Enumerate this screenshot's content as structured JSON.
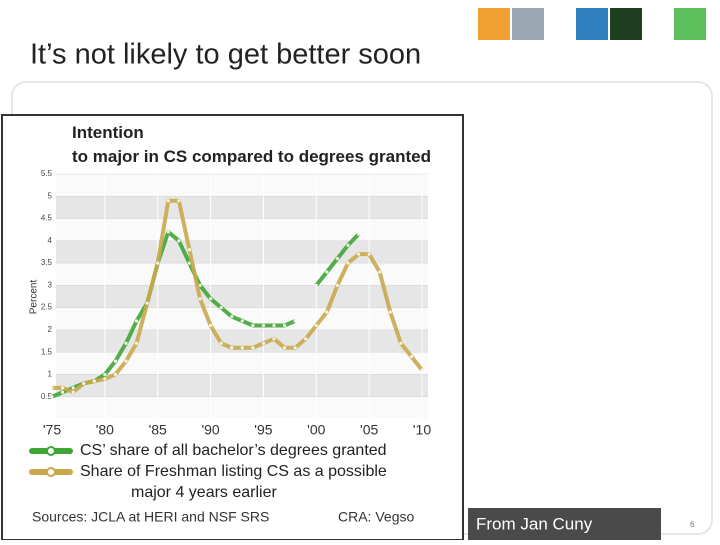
{
  "slide_title": "It’s not likely to get better soon",
  "credit": "From Jan Cuny",
  "page_number": "6",
  "chart_data": {
    "type": "line",
    "title": "Intention to major in CS compared to degrees granted",
    "y_label": "Percent",
    "x": [
      1975,
      1976,
      1977,
      1978,
      1979,
      1980,
      1981,
      1982,
      1983,
      1984,
      1985,
      1986,
      1987,
      1988,
      1989,
      1990,
      1991,
      1992,
      1993,
      1994,
      1995,
      1996,
      1997,
      1998,
      1999,
      2000,
      2001,
      2002,
      2003,
      2004,
      2005,
      2006,
      2007,
      2008,
      2009,
      2010
    ],
    "series": [
      {
        "name": "CS’ share of all bachelor’s degrees granted",
        "color": "#3fa535",
        "values": [
          0.5,
          0.6,
          0.7,
          0.8,
          0.85,
          1.0,
          1.3,
          1.7,
          2.2,
          2.6,
          3.5,
          4.2,
          4.0,
          3.5,
          3.0,
          2.7,
          2.5,
          2.3,
          2.2,
          2.1,
          2.1,
          2.1,
          2.1,
          2.2,
          null,
          3.0,
          3.3,
          3.6,
          3.9,
          4.15,
          null,
          null,
          null,
          null,
          null,
          null
        ]
      },
      {
        "name": "Share of Freshman listing CS as a possible major 4 years earlier",
        "color": "#c9a84c",
        "values": [
          0.7,
          0.7,
          0.6,
          0.8,
          0.85,
          0.9,
          1.0,
          1.3,
          1.7,
          2.6,
          3.5,
          4.9,
          4.9,
          3.8,
          2.7,
          2.1,
          1.7,
          1.6,
          1.6,
          1.6,
          1.7,
          1.8,
          1.6,
          1.6,
          1.8,
          2.1,
          2.4,
          3.0,
          3.5,
          3.7,
          3.7,
          3.3,
          2.4,
          1.7,
          1.4,
          1.1
        ]
      }
    ],
    "xlim": [
      1975,
      2010
    ],
    "xticks": [
      {
        "value": 1975,
        "label": "'75"
      },
      {
        "value": 1980,
        "label": "'80"
      },
      {
        "value": 1985,
        "label": "'85"
      },
      {
        "value": 1990,
        "label": "'90"
      },
      {
        "value": 1995,
        "label": "'95"
      },
      {
        "value": 2000,
        "label": "'00"
      },
      {
        "value": 2005,
        "label": "'05"
      },
      {
        "value": 2010,
        "label": "'10"
      }
    ],
    "ylim": [
      0,
      5.5
    ],
    "yticks": [
      0.5,
      1,
      1.5,
      2,
      2.5,
      3,
      3.5,
      4,
      4.5,
      5,
      5.5
    ],
    "grid": true,
    "sources": "Sources: JCLA at HERI and NSF SRS",
    "attribution": "CRA: Vegso"
  }
}
